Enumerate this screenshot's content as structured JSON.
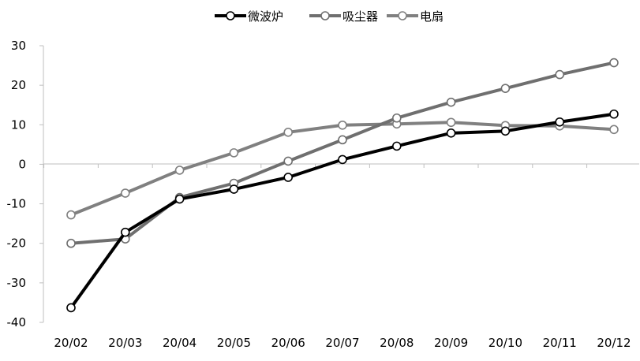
{
  "chart_data": {
    "type": "line",
    "title": "",
    "xlabel": "",
    "ylabel": "",
    "categories": [
      "20/02",
      "20/03",
      "20/04",
      "20/05",
      "20/06",
      "20/07",
      "20/08",
      "20/09",
      "20/10",
      "20/11",
      "20/12"
    ],
    "ylim": [
      -40,
      30
    ],
    "yticks": [
      30,
      20,
      10,
      0,
      -10,
      -20,
      -30,
      -40
    ],
    "grid": false,
    "legend_position": "top-center",
    "series": [
      {
        "name": "微波炉",
        "color": "#000000",
        "values": [
          -36.3,
          -17.2,
          -8.8,
          -6.3,
          -3.3,
          1.2,
          4.6,
          7.9,
          8.4,
          10.7,
          12.7
        ]
      },
      {
        "name": "吸尘器",
        "color": "#6f6f6f",
        "values": [
          -20.0,
          -18.9,
          -8.4,
          -4.8,
          0.8,
          6.2,
          11.7,
          15.7,
          19.2,
          22.7,
          25.7
        ]
      },
      {
        "name": "电扇",
        "color": "#808080",
        "values": [
          -12.8,
          -7.3,
          -1.5,
          2.9,
          8.1,
          9.9,
          10.2,
          10.6,
          9.8,
          9.7,
          8.8
        ]
      }
    ]
  }
}
